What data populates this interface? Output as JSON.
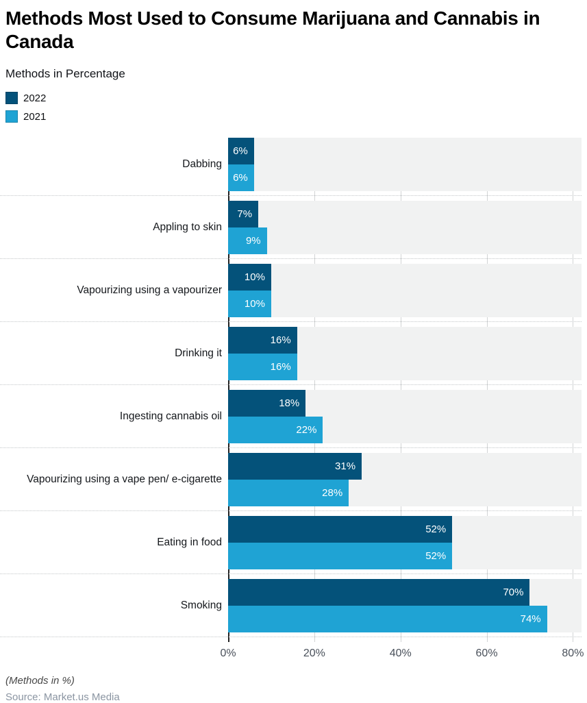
{
  "chart_data": {
    "type": "bar",
    "orientation": "horizontal",
    "title": "Methods Most Used to Consume Marijuana and Cannabis in Canada",
    "title_lines": [
      "Methods Most Used to Consume Marijuana and Cannabis in",
      "Canada"
    ],
    "subtitle": "Methods in Percentage",
    "categories": [
      "Dabbing",
      "Appling to skin",
      "Vapourizing using a vapourizer",
      "Drinking it",
      "Ingesting cannabis oil",
      "Vapourizing using a vape pen/ e-cigarette",
      "Eating in food",
      "Smoking"
    ],
    "series": [
      {
        "name": "2022",
        "color": "#04527a",
        "values": [
          6,
          7,
          10,
          16,
          18,
          31,
          52,
          70
        ]
      },
      {
        "name": "2021",
        "color": "#1fa3d4",
        "values": [
          6,
          9,
          10,
          16,
          22,
          28,
          52,
          74
        ]
      }
    ],
    "value_suffix": "%",
    "value_labels_inside_bar": true,
    "x_ticks": [
      0,
      20,
      40,
      60,
      80
    ],
    "x_tick_labels": [
      "0%",
      "20%",
      "40%",
      "60%",
      "80%"
    ],
    "x_max": 82,
    "grid": true,
    "legend_position": "top-left",
    "footnote": "(Methods in %)",
    "source": "Source: Market.us Media"
  },
  "colors": {
    "series_2022": "#04527a",
    "series_2021": "#1fa3d4",
    "band_background": "#f1f2f2",
    "gridline": "#d2d4d5",
    "axis_line": "#222222",
    "separator_dotted": "#c2c6c8",
    "value_label_text": "#ffffff",
    "tick_text": "#49505a",
    "category_text": "#14171b",
    "footnote_text": "#474747",
    "source_text": "#8b95a2"
  }
}
